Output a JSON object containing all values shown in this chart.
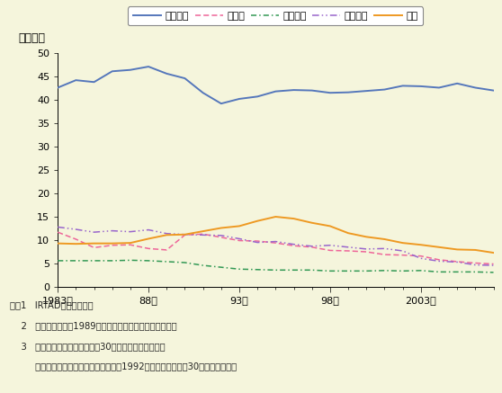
{
  "ylabel": "（千人）",
  "background_color": "#F5F5DC",
  "years": [
    1983,
    1984,
    1985,
    1986,
    1987,
    1988,
    1989,
    1990,
    1991,
    1992,
    1993,
    1994,
    1995,
    1996,
    1997,
    1998,
    1999,
    2000,
    2001,
    2002,
    2003,
    2004,
    2005,
    2006,
    2007
  ],
  "america": [
    42.6,
    44.2,
    43.8,
    46.1,
    46.4,
    47.1,
    45.6,
    44.6,
    41.5,
    39.2,
    40.2,
    40.7,
    41.8,
    42.1,
    42.0,
    41.5,
    41.6,
    41.9,
    42.2,
    43.0,
    42.9,
    42.6,
    43.5,
    42.6,
    42.0
  ],
  "germany": [
    11.7,
    10.2,
    8.4,
    8.9,
    9.0,
    8.2,
    7.9,
    11.1,
    11.3,
    10.6,
    9.9,
    9.8,
    9.4,
    8.8,
    8.5,
    7.8,
    7.7,
    7.5,
    6.9,
    6.8,
    6.6,
    5.8,
    5.4,
    5.1,
    4.9
  ],
  "uk": [
    5.6,
    5.6,
    5.6,
    5.6,
    5.7,
    5.6,
    5.4,
    5.2,
    4.6,
    4.2,
    3.8,
    3.7,
    3.6,
    3.6,
    3.6,
    3.4,
    3.4,
    3.4,
    3.5,
    3.4,
    3.5,
    3.2,
    3.2,
    3.2,
    3.1
  ],
  "france": [
    12.8,
    12.3,
    11.7,
    12.0,
    11.8,
    12.2,
    11.4,
    11.2,
    11.1,
    11.0,
    10.3,
    9.5,
    9.7,
    9.1,
    8.7,
    8.9,
    8.5,
    8.1,
    8.2,
    7.7,
    6.1,
    5.5,
    5.3,
    4.7,
    4.6
  ],
  "japan": [
    9.3,
    9.2,
    9.3,
    9.3,
    9.4,
    10.3,
    11.1,
    11.2,
    11.9,
    12.6,
    13.0,
    14.1,
    15.0,
    14.6,
    13.7,
    13.0,
    11.5,
    10.7,
    10.2,
    9.4,
    9.0,
    8.5,
    8.0,
    7.9,
    7.3
  ],
  "xtick_years": [
    1983,
    1988,
    1993,
    1998,
    2003
  ],
  "xtick_labels": [
    "1983年",
    "88年",
    "93年",
    "98年",
    "2003年"
  ],
  "ylim": [
    0,
    50
  ],
  "yticks": [
    0,
    5,
    10,
    15,
    20,
    25,
    30,
    35,
    40,
    45,
    50
  ],
  "legend_labels": [
    "アメリカ",
    "ドイツ",
    "イギリス",
    "フランス",
    "日本"
  ],
  "colors": [
    "#5577BB",
    "#EE6699",
    "#339955",
    "#9966CC",
    "#EE9922"
  ],
  "note_line1": "注、1   IRTAD資料による。",
  "note_line2": "    2   ドイツの値は，1989年までは旧西ドイツ地域に限る。",
  "note_line3": "    3   死者数の定義は事故発生後30日以内の死者である。",
  "note_line4": "         だだし，フランスの数値及び日本の1992年以前の数値は，30日死者換算数。"
}
